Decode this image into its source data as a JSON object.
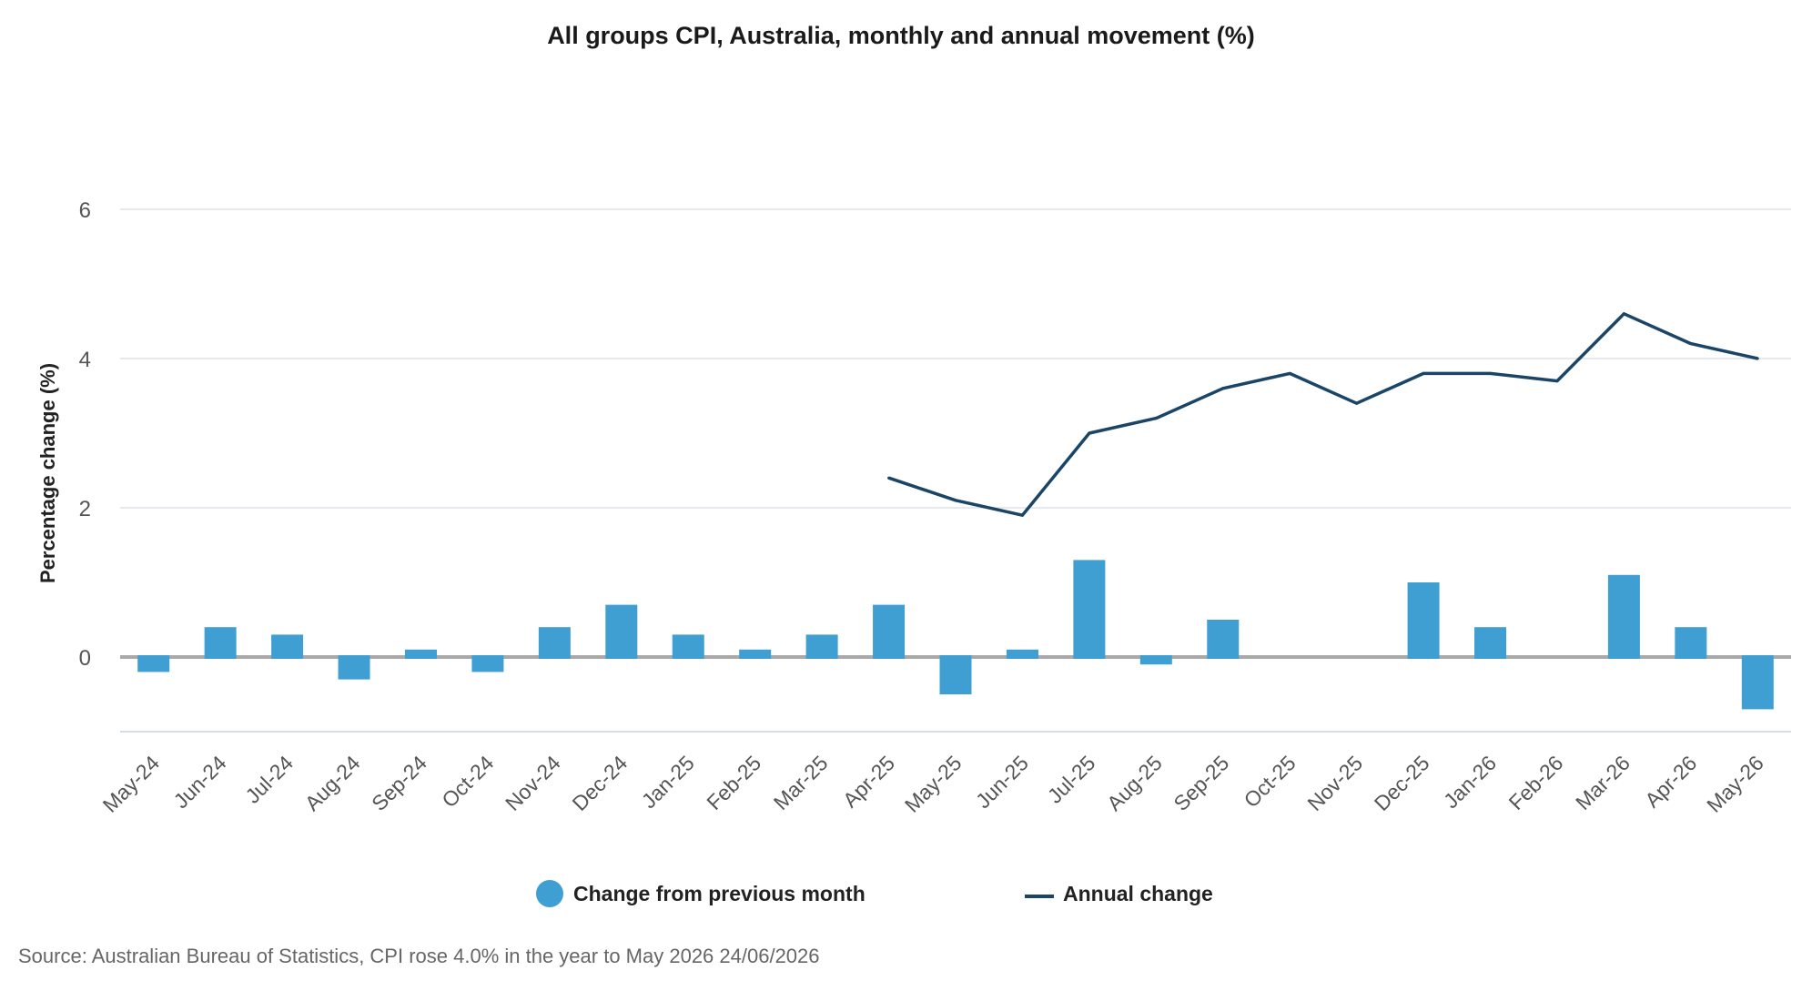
{
  "chart_data": {
    "type": "bar+line",
    "title": "All groups CPI, Australia, monthly and annual movement (%)",
    "ylabel": "Percentage change (%)",
    "xlabel": "",
    "ylim": [
      -1,
      7
    ],
    "yticks": [
      0,
      2,
      4,
      6
    ],
    "grid": true,
    "legend_position": "bottom-center",
    "categories": [
      "May-24",
      "Jun-24",
      "Jul-24",
      "Aug-24",
      "Sep-24",
      "Oct-24",
      "Nov-24",
      "Dec-24",
      "Jan-25",
      "Feb-25",
      "Mar-25",
      "Apr-25",
      "May-25",
      "Jun-25",
      "Jul-25",
      "Aug-25",
      "Sep-25",
      "Oct-25",
      "Nov-25",
      "Dec-25",
      "Jan-26",
      "Feb-26",
      "Mar-26",
      "Apr-26",
      "May-26"
    ],
    "series": [
      {
        "name": "Change from previous month",
        "kind": "bar",
        "color": "#3f9fd3",
        "values": [
          -0.2,
          0.4,
          0.3,
          -0.3,
          0.1,
          -0.2,
          0.4,
          0.7,
          0.3,
          0.1,
          0.3,
          0.7,
          -0.5,
          0.1,
          1.3,
          -0.1,
          0.5,
          0.0,
          0.0,
          1.0,
          0.4,
          0.0,
          1.1,
          0.4,
          -0.7
        ]
      },
      {
        "name": "Annual change",
        "kind": "line",
        "color": "#1b4566",
        "values": [
          null,
          null,
          null,
          null,
          null,
          null,
          null,
          null,
          null,
          null,
          null,
          2.4,
          2.1,
          1.9,
          3.0,
          3.2,
          3.6,
          3.8,
          3.4,
          3.8,
          3.8,
          3.7,
          4.6,
          4.2,
          4.0
        ]
      }
    ],
    "source": "Source: Australian Bureau of Statistics, CPI rose 4.0% in the year to May 2026 24/06/2026"
  },
  "colors": {
    "grid": "#dde3ea",
    "zero_line": "#a9a9a9",
    "axis_line": "#c6d3e0"
  }
}
